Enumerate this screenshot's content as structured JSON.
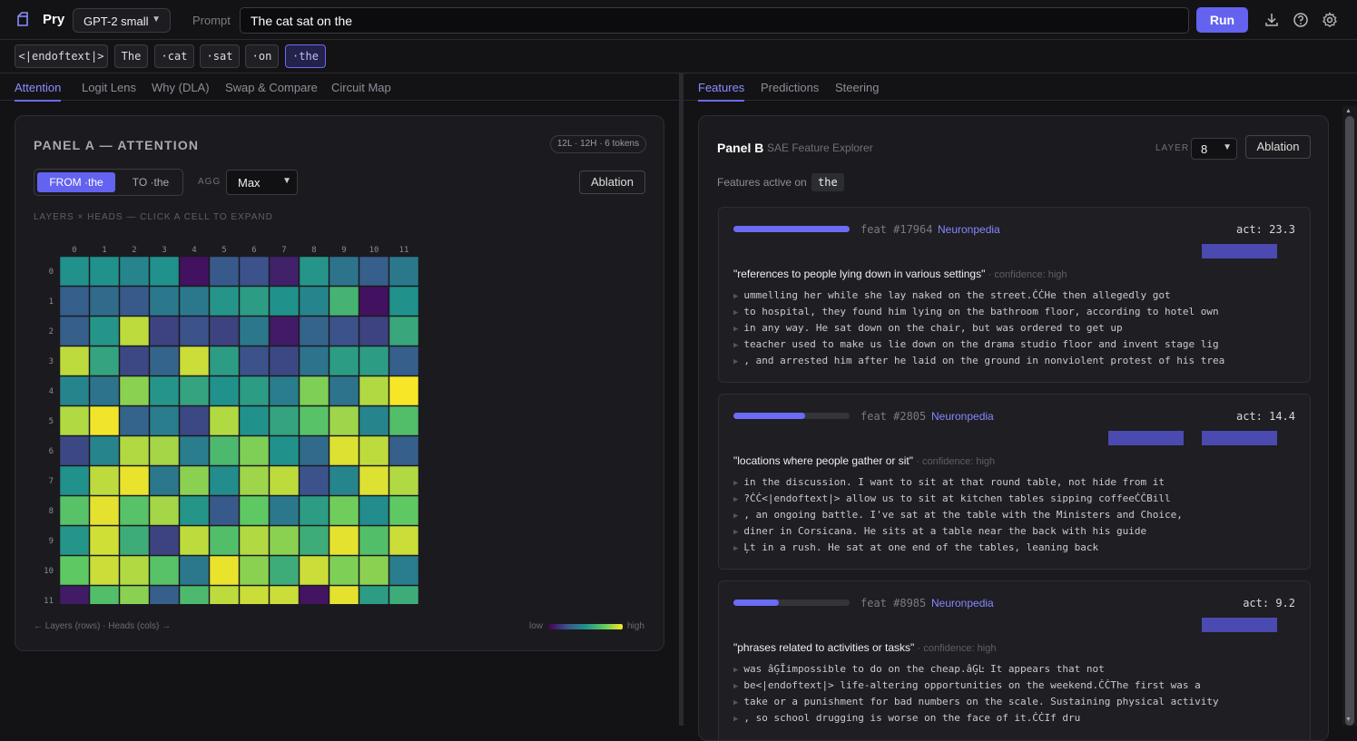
{
  "header": {
    "app_name": "Pry",
    "model": "GPT-2 small",
    "prompt_label": "Prompt",
    "prompt_value": "The cat sat on the",
    "run_label": "Run",
    "icons": [
      "download-icon",
      "help-icon",
      "gear-icon"
    ]
  },
  "tokens": [
    "<|endoftext|>",
    "The",
    "·cat",
    "·sat",
    "·on",
    "·the"
  ],
  "selected_token": 5,
  "left_tabs": [
    "Attention",
    "Logit Lens",
    "Why (DLA)",
    "Swap & Compare",
    "Circuit Map"
  ],
  "right_tabs": [
    "Features",
    "Predictions",
    "Steering"
  ],
  "panel_a": {
    "title": "PANEL A — ATTENTION",
    "badge": "12L · 12H · 6 tokens",
    "from_label": "FROM ·the",
    "to_label": "TO ·the",
    "agg_label": "AGG",
    "agg_value": "Max",
    "ablation_label": "Ablation",
    "grid_caption": "LAYERS × HEADS — CLICK A CELL TO EXPAND",
    "footer_left": "← Layers (rows) · Heads (cols) →",
    "legend_low": "low",
    "legend_high": "high",
    "col_labels": [
      "0",
      "1",
      "2",
      "3",
      "4",
      "5",
      "6",
      "7",
      "8",
      "9",
      "10",
      "11"
    ],
    "row_labels": [
      "0",
      "1",
      "2",
      "3",
      "4",
      "5",
      "6",
      "7",
      "8",
      "9",
      "10",
      "11"
    ],
    "values": [
      [
        0.5,
        0.5,
        0.45,
        0.5,
        0.05,
        0.28,
        0.25,
        0.1,
        0.52,
        0.38,
        0.3,
        0.4
      ],
      [
        0.3,
        0.35,
        0.28,
        0.4,
        0.4,
        0.52,
        0.55,
        0.5,
        0.45,
        0.65,
        0.05,
        0.5
      ],
      [
        0.3,
        0.52,
        0.9,
        0.2,
        0.25,
        0.2,
        0.4,
        0.08,
        0.32,
        0.25,
        0.2,
        0.6
      ],
      [
        0.9,
        0.58,
        0.22,
        0.32,
        0.92,
        0.55,
        0.25,
        0.22,
        0.38,
        0.55,
        0.55,
        0.3
      ],
      [
        0.45,
        0.38,
        0.82,
        0.52,
        0.58,
        0.5,
        0.55,
        0.42,
        0.8,
        0.38,
        0.88,
        0.99
      ],
      [
        0.88,
        0.98,
        0.32,
        0.42,
        0.22,
        0.88,
        0.5,
        0.58,
        0.72,
        0.85,
        0.45,
        0.7
      ],
      [
        0.22,
        0.45,
        0.88,
        0.86,
        0.42,
        0.68,
        0.8,
        0.5,
        0.35,
        0.95,
        0.9,
        0.3
      ],
      [
        0.5,
        0.9,
        0.97,
        0.4,
        0.82,
        0.48,
        0.85,
        0.9,
        0.25,
        0.45,
        0.95,
        0.88
      ],
      [
        0.72,
        0.96,
        0.72,
        0.86,
        0.52,
        0.28,
        0.75,
        0.4,
        0.55,
        0.78,
        0.48,
        0.75
      ],
      [
        0.52,
        0.93,
        0.62,
        0.2,
        0.9,
        0.7,
        0.88,
        0.82,
        0.62,
        0.96,
        0.7,
        0.92
      ],
      [
        0.75,
        0.92,
        0.88,
        0.72,
        0.4,
        0.97,
        0.82,
        0.62,
        0.92,
        0.8,
        0.82,
        0.42
      ],
      [
        0.08,
        0.7,
        0.82,
        0.3,
        0.68,
        0.9,
        0.92,
        0.92,
        0.06,
        0.96,
        0.55,
        0.62
      ]
    ]
  },
  "panel_b": {
    "title": "Panel B",
    "subtitle": "SAE Feature Explorer",
    "layer_label": "LAYER",
    "layer_value": "8",
    "ablation_label": "Ablation",
    "active_label": "Features active on",
    "active_token": "the",
    "features": [
      {
        "strength": 1.0,
        "id": "feat #17964",
        "link": "Neuronpedia",
        "act": "act: 23.3",
        "desc": "\"references to people lying down in various settings\"",
        "confidence": "· confidence: high",
        "examples": [
          "ummelling her while she lay naked on the street.ĊĊHe then allegedly got",
          "to hospital, they found him lying on the bathroom floor, according to hotel own",
          "in any way. He sat down on the chair, but was ordered to get up",
          "teacher used to make us lie down on the drama studio floor and invent stage lig",
          ", and arrested him after he laid on the ground in nonviolent protest of his trea"
        ]
      },
      {
        "strength": 0.62,
        "id": "feat #2805",
        "link": "Neuronpedia",
        "act": "act: 14.4",
        "desc": "\"locations where people gather or sit\"",
        "confidence": "· confidence: high",
        "examples": [
          "in the discussion. I want to sit at that round table, not hide from it",
          "?ĊĊ<|endoftext|> allow us to sit at kitchen tables sipping coffeeĊĊBill",
          ", an ongoing battle. I've sat at the table with the Ministers and Choice,",
          "diner in Corsicana. He sits at a table near the back with his guide",
          "Ļt in a rush. He sat at one end of the tables, leaning back"
        ]
      },
      {
        "strength": 0.39,
        "id": "feat #8985",
        "link": "Neuronpedia",
        "act": "act: 9.2",
        "desc": "\"phrases related to activities or tasks\"",
        "confidence": "· confidence: high",
        "examples": [
          "was âĢĪimpossible to do on the cheap.âĢĿ It appears that not",
          "be<|endoftext|> life-altering opportunities on the weekend.ĊĊThe first was a",
          "take or a punishment for bad numbers on the scale. Sustaining physical activity",
          ", so school drugging is worse on the face of it.ĊĊIf dru"
        ]
      }
    ]
  }
}
